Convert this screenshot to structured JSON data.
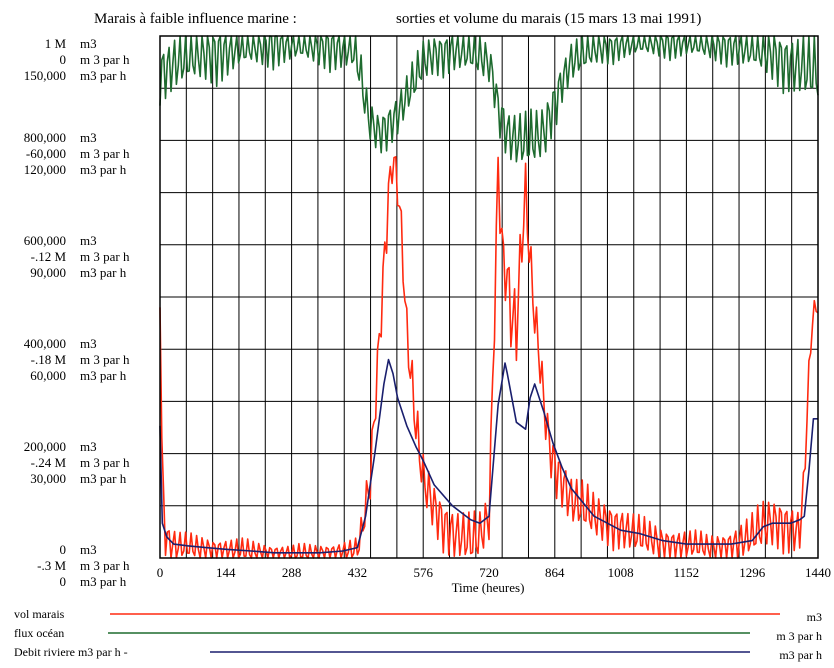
{
  "chart_data": {
    "type": "line",
    "title_left": "Marais à faible influence marine :",
    "title_right": "sorties et volume du marais (15 mars 13 mai 1991)",
    "xlabel": "Time (heures)",
    "xlim": [
      0,
      1440
    ],
    "x_ticks": [
      "0",
      "144",
      "288",
      "432",
      "576",
      "720",
      "864",
      "1008",
      "1152",
      "1296",
      "1440"
    ],
    "grid": true,
    "y_axes": [
      {
        "name": "vol marais",
        "unit": "m3",
        "ylim": [
          0,
          1000000
        ],
        "ticks": [
          "0",
          "200,000",
          "400,000",
          "600,000",
          "800,000",
          "1 M"
        ]
      },
      {
        "name": "flux océan",
        "unit": "m 3 par h",
        "ylim": [
          -300000,
          0
        ],
        "ticks": [
          "-.3 M",
          "-.24 M",
          "-.18 M",
          "-.12 M",
          "-60,000",
          "0"
        ]
      },
      {
        "name": "Debit riviere m3 par h",
        "unit": "m3 par h",
        "ylim": [
          0,
          150000
        ],
        "ticks": [
          "0",
          "30,000",
          "60,000",
          "90,000",
          "120,000",
          "150,000"
        ]
      }
    ],
    "y_tick_labels": [
      {
        "value": "1 M",
        "unit": "m3"
      },
      {
        "value": "0",
        "unit": "m 3 par h"
      },
      {
        "value": "150,000",
        "unit": "m3 par h"
      },
      {
        "value": "800,000",
        "unit": "m3"
      },
      {
        "value": "-60,000",
        "unit": "m 3 par h"
      },
      {
        "value": "120,000",
        "unit": "m3 par h"
      },
      {
        "value": "600,000",
        "unit": "m3"
      },
      {
        "value": "-.12 M",
        "unit": "m 3 par h"
      },
      {
        "value": "90,000",
        "unit": "m3 par h"
      },
      {
        "value": "400,000",
        "unit": "m3"
      },
      {
        "value": "-.18 M",
        "unit": "m 3 par h"
      },
      {
        "value": "60,000",
        "unit": "m3 par h"
      },
      {
        "value": "200,000",
        "unit": "m3"
      },
      {
        "value": "-.24 M",
        "unit": "m 3 par h"
      },
      {
        "value": "30,000",
        "unit": "m3 par h"
      },
      {
        "value": "0",
        "unit": "m3"
      },
      {
        "value": "-.3 M",
        "unit": "m 3 par h"
      },
      {
        "value": "0",
        "unit": "m3 par h"
      }
    ],
    "series": [
      {
        "name": "vol marais",
        "unit": "m3",
        "color": "#ff2a10",
        "axis": 0,
        "oscillating": true,
        "x": [
          0,
          5,
          10,
          20,
          30,
          40,
          60,
          100,
          144,
          200,
          260,
          288,
          340,
          400,
          432,
          440,
          460,
          480,
          500,
          510,
          520,
          530,
          540,
          560,
          576,
          600,
          620,
          640,
          680,
          700,
          720,
          730,
          740,
          750,
          760,
          770,
          780,
          790,
          800,
          810,
          820,
          830,
          840,
          850,
          860,
          880,
          900,
          950,
          1008,
          1050,
          1100,
          1152,
          1200,
          1250,
          1296,
          1320,
          1340,
          1360,
          1380,
          1400,
          1410,
          1420,
          1430,
          1440
        ],
        "y": [
          480000,
          150000,
          60000,
          30000,
          25000,
          22000,
          20000,
          18000,
          15000,
          12000,
          10000,
          8000,
          10000,
          12000,
          15000,
          40000,
          150000,
          420000,
          700000,
          770000,
          720000,
          600000,
          430000,
          250000,
          150000,
          100000,
          70000,
          50000,
          30000,
          40000,
          80000,
          400000,
          750000,
          580000,
          540000,
          460000,
          440000,
          580000,
          700000,
          560000,
          460000,
          390000,
          300000,
          230000,
          190000,
          150000,
          110000,
          80000,
          60000,
          40000,
          30000,
          25000,
          20000,
          25000,
          40000,
          60000,
          70000,
          70000,
          60000,
          50000,
          150000,
          350000,
          480000,
          470000
        ],
        "amplitude": [
          0,
          60000,
          60000,
          40000,
          40000,
          35000,
          30000,
          30000,
          30000,
          25000,
          20000,
          20000,
          20000,
          25000,
          25000,
          40000,
          60000,
          60000,
          60000,
          40000,
          60000,
          60000,
          60000,
          60000,
          60000,
          60000,
          60000,
          60000,
          60000,
          60000,
          60000,
          60000,
          60000,
          60000,
          80000,
          100000,
          100000,
          80000,
          60000,
          60000,
          60000,
          60000,
          60000,
          60000,
          60000,
          60000,
          60000,
          55000,
          50000,
          45000,
          40000,
          35000,
          30000,
          40000,
          50000,
          60000,
          60000,
          60000,
          60000,
          50000,
          40000,
          30000,
          20000,
          0
        ]
      },
      {
        "name": "flux océan",
        "unit": "m 3 par h",
        "color": "#1e6b2f",
        "axis": 1,
        "oscillating": true,
        "x": [
          0,
          40,
          100,
          144,
          200,
          260,
          288,
          330,
          380,
          420,
          432,
          440,
          450,
          460,
          480,
          500,
          520,
          540,
          560,
          576,
          600,
          640,
          680,
          720,
          730,
          740,
          760,
          780,
          800,
          820,
          840,
          860,
          880,
          900,
          950,
          1008,
          1050,
          1100,
          1152,
          1200,
          1250,
          1296,
          1340,
          1380,
          1420,
          1440
        ],
        "y": [
          -20000,
          -15000,
          -10000,
          -8000,
          -6000,
          -4000,
          -4000,
          -5000,
          -6000,
          -8000,
          -15000,
          -25000,
          -40000,
          -50000,
          -55000,
          -50000,
          -45000,
          -35000,
          -25000,
          -15000,
          -10000,
          -8000,
          -10000,
          -15000,
          -25000,
          -40000,
          -55000,
          -60000,
          -62000,
          -60000,
          -55000,
          -40000,
          -25000,
          -15000,
          -8000,
          -5000,
          -4000,
          -4000,
          -4000,
          -5000,
          -6000,
          -8000,
          -10000,
          -15000,
          -20000,
          -22000
        ],
        "amplitude": [
          20000,
          20000,
          20000,
          20000,
          15000,
          15000,
          15000,
          15000,
          15000,
          15000,
          15000,
          15000,
          15000,
          15000,
          15000,
          15000,
          15000,
          15000,
          15000,
          15000,
          15000,
          15000,
          15000,
          15000,
          15000,
          15000,
          18000,
          20000,
          20000,
          20000,
          20000,
          18000,
          15000,
          15000,
          12000,
          10000,
          10000,
          10000,
          10000,
          12000,
          12000,
          15000,
          20000,
          20000,
          25000,
          25000
        ]
      },
      {
        "name": "Debit riviere m3 par h",
        "unit": "m3 par h",
        "color": "#1a1f6e",
        "axis": 2,
        "oscillating": false,
        "x": [
          0,
          5,
          15,
          30,
          60,
          100,
          144,
          200,
          250,
          288,
          350,
          400,
          432,
          450,
          470,
          490,
          500,
          510,
          520,
          540,
          560,
          576,
          600,
          640,
          680,
          700,
          720,
          740,
          755,
          760,
          780,
          800,
          810,
          820,
          840,
          860,
          880,
          900,
          950,
          1008,
          1050,
          1100,
          1152,
          1200,
          1250,
          1296,
          1320,
          1340,
          1360,
          1380,
          1400,
          1410,
          1420,
          1430,
          1440
        ],
        "y": [
          38000,
          10000,
          6000,
          4000,
          3500,
          3000,
          2500,
          2000,
          1500,
          1500,
          1500,
          2000,
          3000,
          12000,
          30000,
          50000,
          57000,
          53000,
          46000,
          38000,
          32000,
          28000,
          21000,
          15000,
          11000,
          10000,
          12000,
          44000,
          56000,
          53000,
          39000,
          37000,
          46000,
          50000,
          42000,
          33000,
          26000,
          20000,
          12000,
          8000,
          7000,
          5000,
          4000,
          4000,
          4000,
          5000,
          9000,
          10000,
          10000,
          10000,
          11000,
          12000,
          25000,
          40000,
          40000
        ]
      }
    ],
    "legend": [
      {
        "label": "vol marais",
        "unit": "m3",
        "color": "#ff2a10"
      },
      {
        "label": "flux océan",
        "unit": "m 3 par h",
        "color": "#1e6b2f"
      },
      {
        "label": "Debit riviere m3 par h -",
        "unit": "m3 par h",
        "color": "#1a1f6e"
      }
    ]
  }
}
